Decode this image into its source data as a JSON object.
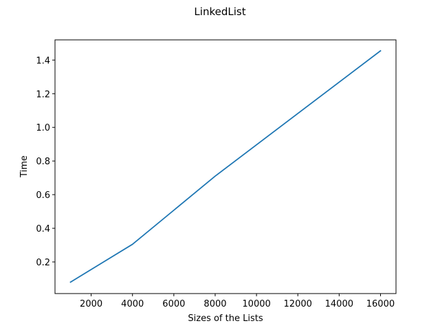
{
  "chart_data": {
    "type": "line",
    "title": "LinkedList",
    "xlabel": "Sizes of the Lists",
    "ylabel": "Time",
    "xlim": [
      250,
      16750
    ],
    "ylim": [
      0.012,
      1.52
    ],
    "xticks": [
      2000,
      4000,
      6000,
      8000,
      10000,
      12000,
      14000,
      16000
    ],
    "yticks": [
      0.2,
      0.4,
      0.6,
      0.8,
      1.0,
      1.2,
      1.4
    ],
    "xtick_labels": [
      "2000",
      "4000",
      "6000",
      "8000",
      "10000",
      "12000",
      "14000",
      "16000"
    ],
    "ytick_labels": [
      "0.2",
      "0.4",
      "0.6",
      "0.8",
      "1.0",
      "1.2",
      "1.4"
    ],
    "grid": false,
    "series": [
      {
        "color": "#1f77b4",
        "x": [
          1000,
          4000,
          8000,
          16000
        ],
        "y": [
          0.08,
          0.305,
          0.71,
          1.455
        ]
      }
    ]
  }
}
